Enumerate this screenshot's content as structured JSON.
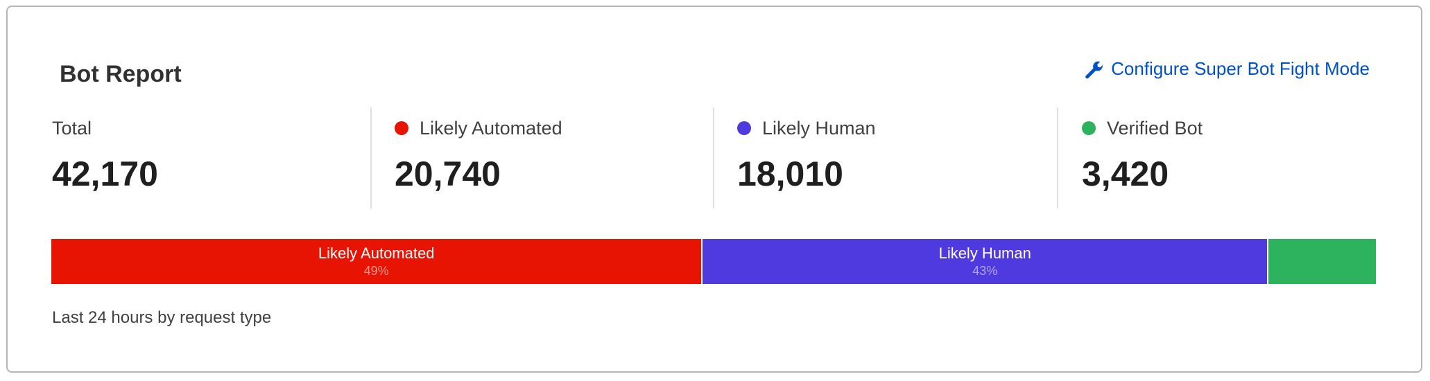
{
  "card": {
    "title": "Bot Report",
    "configure_link": {
      "label": "Configure Super Bot Fight Mode",
      "icon": "wrench-icon",
      "color": "#0051c3"
    },
    "stats": [
      {
        "label": "Total",
        "value": "42,170"
      },
      {
        "label": "Likely Automated",
        "value": "20,740",
        "color": "#e81403"
      },
      {
        "label": "Likely Human",
        "value": "18,010",
        "color": "#4e3adf"
      },
      {
        "label": "Verified Bot",
        "value": "3,420",
        "color": "#2db35e"
      }
    ],
    "breakdown_bar": [
      {
        "label": "Likely Automated",
        "percent_label": "49%",
        "value": 20740,
        "color": "#e81403"
      },
      {
        "label": "Likely Human",
        "percent_label": "43%",
        "value": 18010,
        "color": "#4e3adf"
      },
      {
        "label": "",
        "percent_label": "",
        "value": 3420,
        "color": "#2db35e"
      }
    ],
    "footer": "Last 24 hours by request type"
  }
}
